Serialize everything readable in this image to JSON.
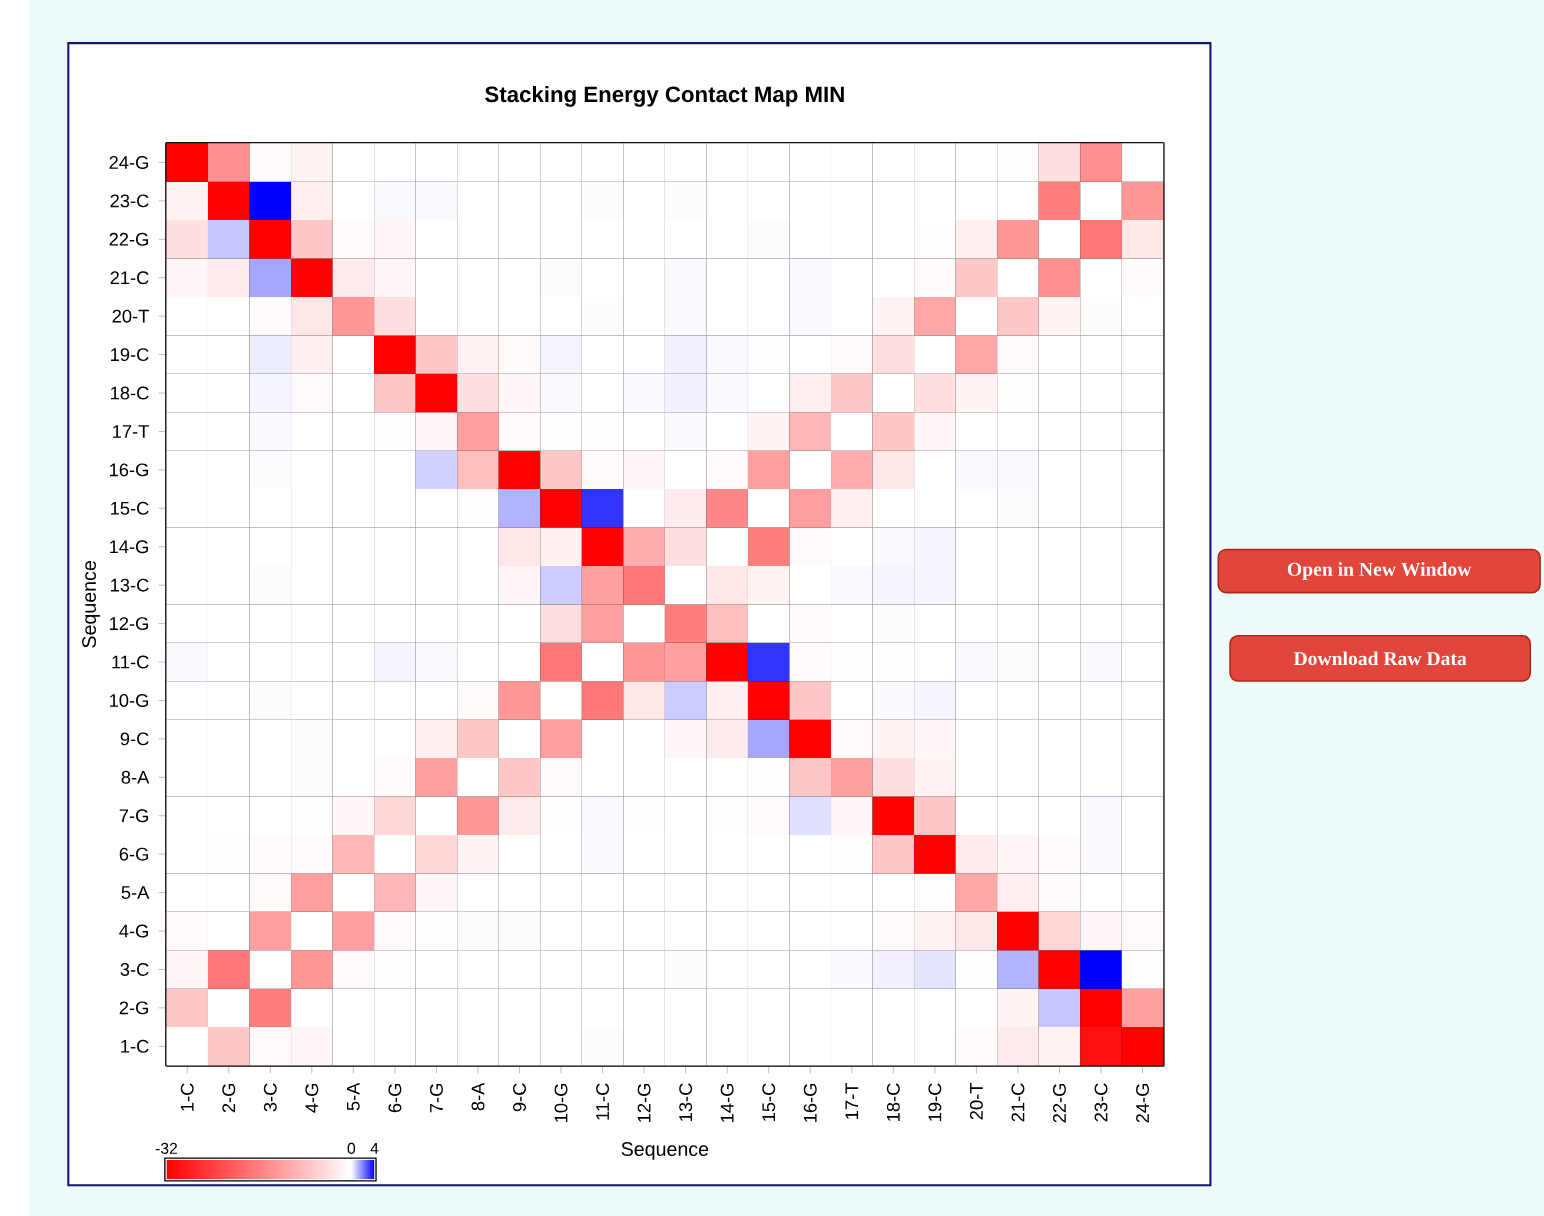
{
  "chart_data": {
    "type": "heatmap",
    "title": "Stacking Energy Contact Map MIN",
    "xlabel": "Sequence",
    "ylabel": "Sequence",
    "categories": [
      "1-C",
      "2-G",
      "3-C",
      "4-G",
      "5-A",
      "6-G",
      "7-G",
      "8-A",
      "9-C",
      "10-G",
      "11-C",
      "12-G",
      "13-C",
      "14-G",
      "15-C",
      "16-G",
      "17-T",
      "18-C",
      "19-C",
      "20-T",
      "21-C",
      "22-G",
      "23-C",
      "24-G"
    ],
    "y_categories": [
      "24-G",
      "23-C",
      "22-G",
      "21-C",
      "20-T",
      "19-C",
      "18-C",
      "17-T",
      "16-G",
      "15-C",
      "14-G",
      "13-C",
      "12-G",
      "11-C",
      "10-G",
      "9-C",
      "8-A",
      "7-G",
      "6-G",
      "5-A",
      "4-G",
      "3-C",
      "2-G",
      "1-C"
    ],
    "cells": [
      [
        -32,
        -14,
        -0.5,
        -1.5,
        0,
        0,
        0,
        0,
        0,
        0,
        0,
        0,
        0,
        0,
        0,
        0,
        0,
        0,
        0,
        0,
        -0.3,
        -4,
        -14,
        0
      ],
      [
        -1.5,
        -32,
        4,
        -2,
        0,
        0.1,
        0.1,
        0,
        0,
        0,
        0.05,
        0,
        0.05,
        0,
        0,
        0,
        0,
        0,
        0,
        0,
        0,
        -16,
        0,
        -13
      ],
      [
        -4,
        0.9,
        -32,
        -7,
        -0.5,
        -1,
        0,
        0,
        0,
        0,
        0,
        0,
        0,
        0,
        0.05,
        0,
        0,
        0,
        -0.3,
        -2,
        -13,
        0,
        -17,
        -3
      ],
      [
        -1,
        -2.5,
        1.4,
        -32,
        -2.5,
        -1,
        0,
        0,
        0,
        0.05,
        0,
        0,
        0.1,
        0,
        0,
        0.1,
        0,
        0,
        -0.5,
        -7,
        0,
        -14,
        0,
        -0.5
      ],
      [
        0,
        0,
        -0.5,
        -3,
        -13,
        -4,
        0,
        0,
        0,
        0,
        0.05,
        0,
        0.1,
        0,
        0,
        0.1,
        0,
        -1.5,
        -11,
        0,
        -7,
        -1.5,
        0.05,
        0
      ],
      [
        0,
        0,
        0.3,
        -2,
        0,
        -32,
        -7,
        -1.5,
        -0.7,
        0.15,
        0,
        0,
        0.2,
        0.1,
        -0.3,
        0,
        -0.7,
        -4,
        0,
        -11,
        -0.7,
        0,
        0,
        0
      ],
      [
        0,
        0,
        0.15,
        -0.7,
        0,
        -7,
        -32,
        -4,
        -1,
        0.1,
        0,
        0.1,
        0.2,
        0.1,
        0,
        -2,
        -7,
        0,
        -4,
        -1.5,
        -0.3,
        0,
        0,
        0
      ],
      [
        0,
        0,
        0.1,
        0,
        0,
        -0.3,
        -1,
        -12,
        -0.7,
        -0.3,
        -0.2,
        0,
        0.1,
        0,
        -1.5,
        -9,
        0,
        -7,
        -1,
        0,
        0,
        0,
        0,
        0
      ],
      [
        0,
        0,
        0.05,
        0,
        0,
        0,
        0.7,
        -8,
        -32,
        -7,
        -0.5,
        -1,
        0,
        -0.5,
        -12,
        0,
        -10,
        -3,
        0,
        0.1,
        0.1,
        0,
        0,
        0
      ],
      [
        0,
        0,
        0,
        0,
        0,
        0,
        0,
        -0.3,
        1.2,
        -32,
        3.2,
        0,
        -2.5,
        -15,
        0,
        -12,
        -2,
        0,
        0,
        0,
        0.05,
        0,
        0,
        0
      ],
      [
        0,
        0,
        0,
        0,
        0,
        0,
        0,
        0,
        -3,
        -2,
        -32,
        -10,
        -4,
        0,
        -16,
        -0.7,
        0,
        0.1,
        0.15,
        0,
        0,
        0,
        0,
        0
      ],
      [
        0,
        0,
        0.05,
        0,
        0,
        0,
        0,
        0,
        -1,
        0.8,
        -12,
        -17,
        0,
        -3,
        -1.5,
        0,
        0.1,
        0.15,
        0.15,
        0,
        0,
        0,
        0,
        0
      ],
      [
        0,
        0,
        0,
        0,
        0,
        0,
        0,
        0,
        0,
        -4,
        -12,
        0,
        -16,
        -8,
        0,
        -0.5,
        0,
        0.05,
        0,
        0,
        0,
        0,
        0,
        0
      ],
      [
        0.1,
        0,
        0,
        0,
        0,
        0.15,
        0.1,
        0,
        0,
        -17,
        0,
        -13,
        -12,
        -32,
        3.2,
        -0.5,
        -0.3,
        -0.3,
        0,
        0.1,
        0.05,
        0,
        0.1,
        0
      ],
      [
        0,
        0,
        0.05,
        0,
        0,
        0,
        0,
        -0.7,
        -13,
        0,
        -17,
        -3,
        0.8,
        -2,
        -32,
        -7,
        0,
        0.1,
        0.15,
        0,
        0,
        0,
        0,
        0
      ],
      [
        0,
        0,
        0,
        0.05,
        0,
        0,
        -2,
        -7,
        0,
        -12,
        0,
        0,
        -1,
        -2.5,
        1.4,
        -32,
        -0.5,
        -1.5,
        -1,
        0,
        0,
        0,
        0,
        0
      ],
      [
        0,
        0,
        0,
        0.05,
        0,
        -0.5,
        -12,
        0,
        -7,
        -0.7,
        0,
        0,
        0,
        0,
        -0.3,
        -7,
        -12,
        -4,
        -1.5,
        0,
        0,
        0,
        0,
        0
      ],
      [
        0,
        0,
        0,
        -0.3,
        -1,
        -5,
        0,
        -13,
        -2.5,
        -0.3,
        0.1,
        -0.2,
        0,
        -0.3,
        -0.5,
        0.5,
        -1,
        -32,
        -7,
        0,
        0,
        0,
        0.1,
        0
      ],
      [
        0,
        -0.2,
        -0.5,
        -0.5,
        -9,
        0,
        -5,
        -1.5,
        0,
        0,
        0.1,
        0,
        0,
        0,
        0,
        0,
        -0.2,
        -7,
        -32,
        -2.5,
        -1,
        -0.5,
        0.1,
        0
      ],
      [
        0,
        0,
        -0.7,
        -12,
        0,
        -9,
        -1,
        0,
        0,
        0,
        0,
        0,
        0,
        0,
        0,
        0,
        0,
        0,
        -0.2,
        -11,
        -2,
        -0.5,
        0,
        0
      ],
      [
        -0.7,
        0,
        -12,
        0,
        -12,
        -0.7,
        -0.2,
        0.05,
        0.05,
        0,
        0,
        0,
        0,
        0,
        0,
        0,
        0,
        -0.5,
        -1.5,
        -3,
        -32,
        -5,
        -1,
        -0.5
      ],
      [
        -1,
        -17,
        0,
        -13,
        -0.7,
        -0.3,
        0,
        0,
        0,
        0,
        0,
        0,
        0.05,
        0,
        0,
        0,
        0.1,
        0.2,
        0.4,
        -0.3,
        1.2,
        -32,
        4,
        -0.2
      ],
      [
        -7,
        0,
        -16,
        0,
        0,
        0,
        0,
        0,
        0,
        0,
        0,
        0,
        0,
        0,
        0,
        0,
        0,
        0,
        0,
        0,
        -1.5,
        0.9,
        -32,
        -12
      ],
      [
        0,
        -7,
        -0.7,
        -1,
        0,
        0,
        0,
        0,
        0,
        0,
        0.05,
        0,
        0,
        0,
        0,
        0,
        0,
        0,
        0,
        -0.5,
        -2.5,
        -1.5,
        -30,
        -32
      ]
    ],
    "clim": [
      -32,
      4
    ],
    "cticks": [
      -32,
      0,
      4
    ],
    "grid": true,
    "annotations": [
      "Open in New Window",
      "Download Raw Data"
    ]
  }
}
